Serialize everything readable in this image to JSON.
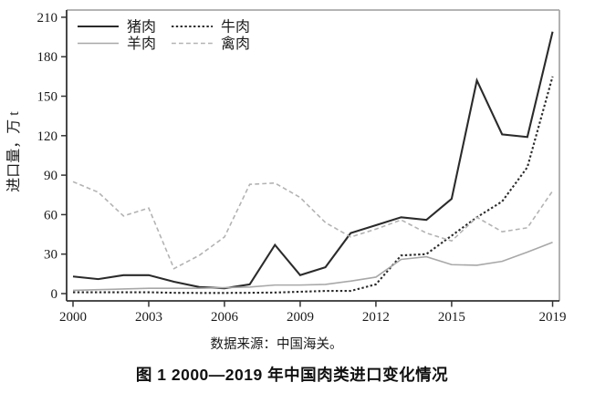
{
  "figure": {
    "source_note": "数据来源：中国海关。",
    "title": "图 1 2000—2019 年中国肉类进口变化情况"
  },
  "chart_data": {
    "type": "line",
    "title": "",
    "xlabel": "",
    "ylabel": "进口量，万 t",
    "ylim": [
      0,
      210
    ],
    "yticks": [
      0,
      30,
      60,
      90,
      120,
      150,
      180,
      210
    ],
    "xticks": [
      2000,
      2003,
      2006,
      2009,
      2012,
      2015,
      2019
    ],
    "xlim": [
      2000,
      2019
    ],
    "grid": false,
    "legend_position": "top-left-inside",
    "frame_color_light": "#a9a9a9",
    "axis_color_dark": "#333333",
    "x": [
      2000,
      2001,
      2002,
      2003,
      2004,
      2005,
      2006,
      2007,
      2008,
      2009,
      2010,
      2011,
      2012,
      2013,
      2014,
      2015,
      2016,
      2017,
      2018,
      2019
    ],
    "series": [
      {
        "name": "猪肉",
        "key": "pork",
        "color": "#2b2b2b",
        "dash": "solid",
        "width": 2.1,
        "values": [
          13,
          11,
          14,
          14,
          9,
          5,
          4,
          7,
          37,
          14,
          20,
          46,
          52,
          58,
          56,
          72,
          162,
          121,
          119,
          199
        ]
      },
      {
        "name": "牛肉",
        "key": "beef",
        "color": "#2b2b2b",
        "dash": "dotted",
        "width": 2.1,
        "values": [
          1,
          1,
          1,
          1,
          0.6,
          0.5,
          0.5,
          0.6,
          0.8,
          1.4,
          2,
          2,
          7,
          29,
          30,
          44,
          58,
          70,
          96,
          165
        ]
      },
      {
        "name": "羊肉",
        "key": "mutton",
        "color": "#a8a8a8",
        "dash": "solid",
        "width": 1.6,
        "values": [
          2.5,
          3,
          3.5,
          4,
          4,
          4,
          4.5,
          5,
          6.5,
          6.5,
          7,
          9.5,
          12.5,
          26,
          28,
          22,
          21.5,
          24.5,
          31.5,
          39
        ]
      },
      {
        "name": "禽肉",
        "key": "poultry",
        "color": "#b3b3b3",
        "dash": "dashed",
        "width": 1.6,
        "values": [
          85,
          77,
          59,
          65,
          19,
          29,
          43,
          83,
          84,
          73,
          54,
          43,
          49,
          56,
          46,
          40,
          58,
          47,
          50,
          78
        ]
      }
    ]
  }
}
